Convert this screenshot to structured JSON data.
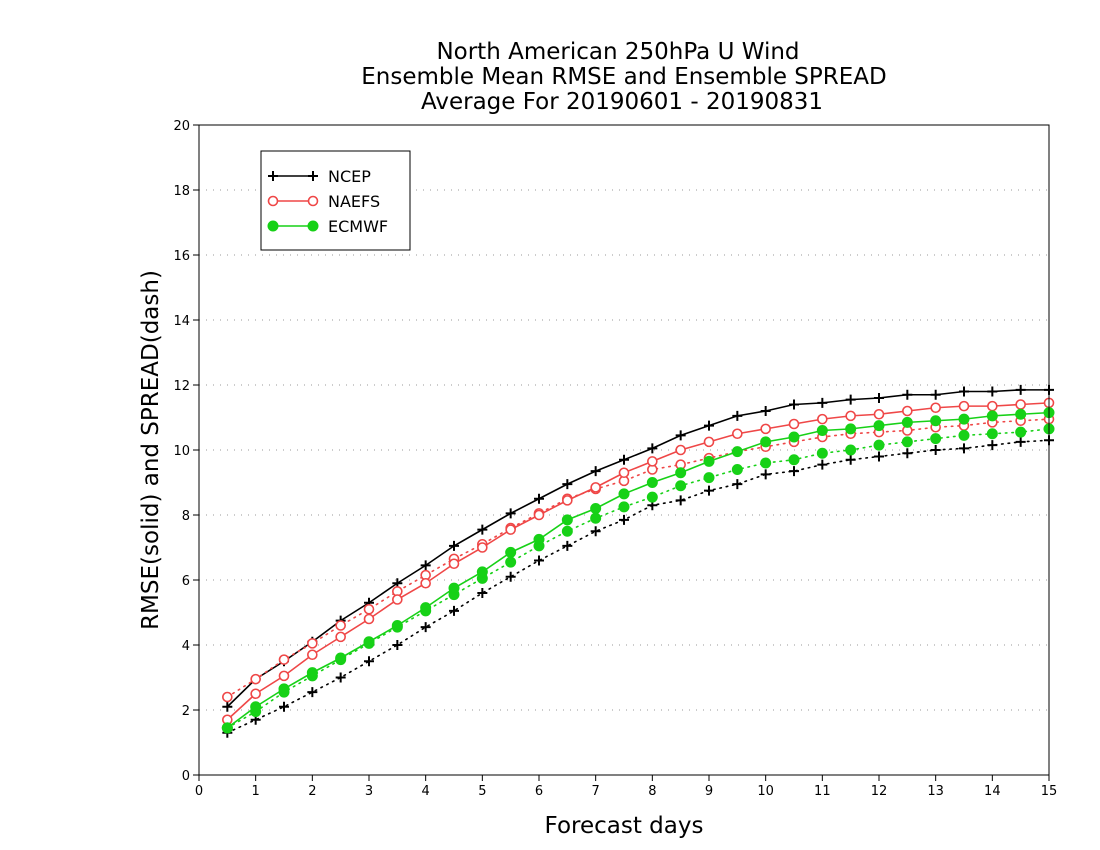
{
  "chart_data": {
    "type": "line",
    "title": [
      "North American 250hPa U Wind",
      "Ensemble Mean RMSE and Ensemble SPREAD",
      "Average For 20190601 - 20190831"
    ],
    "xlabel": "Forecast days",
    "ylabel": "RMSE(solid) and SPREAD(dash)",
    "xlim": [
      0,
      15
    ],
    "ylim": [
      0,
      20
    ],
    "xticks": [
      0,
      1,
      2,
      3,
      4,
      5,
      6,
      7,
      8,
      9,
      10,
      11,
      12,
      13,
      14,
      15
    ],
    "yticks": [
      0,
      2,
      4,
      6,
      8,
      10,
      12,
      14,
      16,
      18,
      20
    ],
    "grid": "dotted horizontal",
    "legend_position": "top-left",
    "x": [
      0.5,
      1.0,
      1.5,
      2.0,
      2.5,
      3.0,
      3.5,
      4.0,
      4.5,
      5.0,
      5.5,
      6.0,
      6.5,
      7.0,
      7.5,
      8.0,
      8.5,
      9.0,
      9.5,
      10.0,
      10.5,
      11.0,
      11.5,
      12.0,
      12.5,
      13.0,
      13.5,
      14.0,
      14.5,
      15.0
    ],
    "series": [
      {
        "name": "NCEP",
        "color": "#000000",
        "marker": "plus",
        "rmse": [
          2.1,
          2.95,
          3.5,
          4.1,
          4.75,
          5.3,
          5.9,
          6.45,
          7.05,
          7.55,
          8.05,
          8.5,
          8.95,
          9.35,
          9.7,
          10.05,
          10.45,
          10.75,
          11.05,
          11.2,
          11.4,
          11.45,
          11.55,
          11.6,
          11.7,
          11.7,
          11.8,
          11.8,
          11.85,
          11.85
        ],
        "spread": [
          1.3,
          1.7,
          2.1,
          2.55,
          3.0,
          3.5,
          4.0,
          4.55,
          5.05,
          5.6,
          6.1,
          6.6,
          7.05,
          7.5,
          7.85,
          8.3,
          8.45,
          8.75,
          8.95,
          9.25,
          9.35,
          9.55,
          9.7,
          9.8,
          9.9,
          10.0,
          10.05,
          10.15,
          10.25,
          10.3
        ]
      },
      {
        "name": "NAEFS",
        "color": "#ef4747",
        "marker": "open-circle",
        "rmse": [
          1.7,
          2.5,
          3.05,
          3.7,
          4.25,
          4.8,
          5.4,
          5.9,
          6.5,
          7.0,
          7.55,
          8.0,
          8.45,
          8.85,
          9.3,
          9.65,
          10.0,
          10.25,
          10.5,
          10.65,
          10.8,
          10.95,
          11.05,
          11.1,
          11.2,
          11.3,
          11.35,
          11.35,
          11.4,
          11.45
        ],
        "spread": [
          2.4,
          2.95,
          3.55,
          4.05,
          4.6,
          5.1,
          5.65,
          6.15,
          6.65,
          7.1,
          7.6,
          8.05,
          8.5,
          8.8,
          9.05,
          9.4,
          9.55,
          9.75,
          9.95,
          10.1,
          10.25,
          10.4,
          10.5,
          10.55,
          10.6,
          10.7,
          10.75,
          10.85,
          10.9,
          10.95
        ]
      },
      {
        "name": "ECMWF",
        "color": "#17d117",
        "marker": "filled-circle",
        "rmse": [
          1.45,
          2.1,
          2.65,
          3.15,
          3.6,
          4.1,
          4.6,
          5.15,
          5.75,
          6.25,
          6.85,
          7.25,
          7.85,
          8.2,
          8.65,
          9.0,
          9.3,
          9.65,
          9.95,
          10.25,
          10.4,
          10.6,
          10.65,
          10.75,
          10.85,
          10.9,
          10.95,
          11.05,
          11.1,
          11.15
        ],
        "spread": [
          1.45,
          1.95,
          2.55,
          3.05,
          3.55,
          4.05,
          4.55,
          5.05,
          5.55,
          6.05,
          6.55,
          7.05,
          7.5,
          7.9,
          8.25,
          8.55,
          8.9,
          9.15,
          9.4,
          9.6,
          9.7,
          9.9,
          10.0,
          10.15,
          10.25,
          10.35,
          10.45,
          10.5,
          10.55,
          10.65
        ]
      }
    ]
  }
}
